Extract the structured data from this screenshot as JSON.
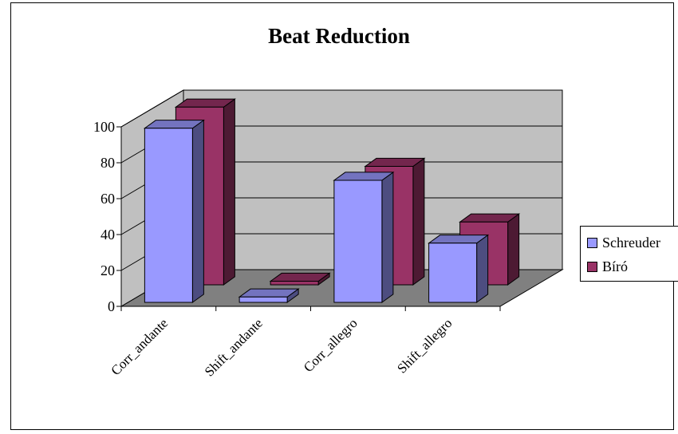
{
  "chart_data": {
    "type": "bar",
    "title": "Beat Reduction",
    "categories": [
      "Corr_andante",
      "Shift_andante",
      "Corr_allegro",
      "Shift_allegro"
    ],
    "series": [
      {
        "name": "Schreuder",
        "values": [
          97,
          3,
          68,
          33
        ],
        "color": "#9999ff"
      },
      {
        "name": "Bíró",
        "values": [
          99,
          2,
          66,
          35
        ],
        "color": "#993366"
      }
    ],
    "ylim": [
      0,
      100
    ],
    "yticks": [
      0,
      20,
      40,
      60,
      80,
      100
    ],
    "grid": true,
    "three_d": true,
    "legend_position": "right"
  }
}
